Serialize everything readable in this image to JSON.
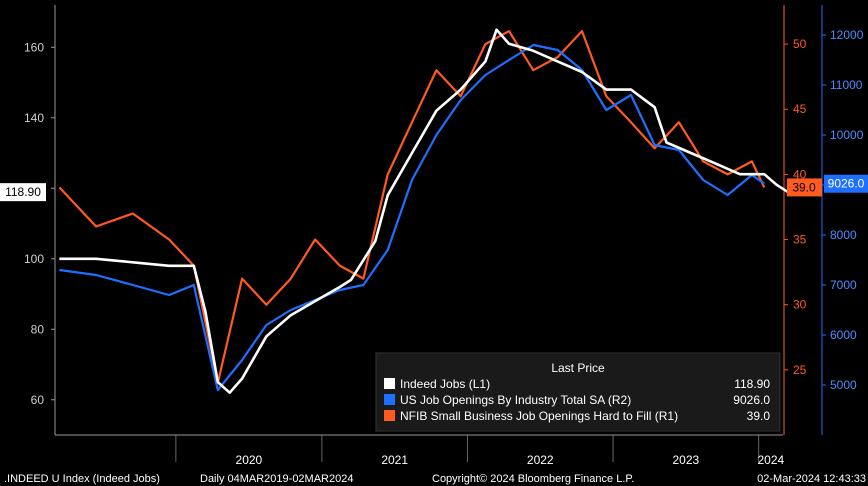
{
  "chart_data": {
    "type": "line",
    "footer": {
      "security": ".INDEED U Index (Indeed Jobs)",
      "period": "Daily 04MAR2019-02MAR2024",
      "copyright": "Copyright© 2024 Bloomberg Finance L.P.",
      "timestamp": "02-Mar-2024 12:43:33"
    },
    "legend": {
      "header": "Last Price",
      "placement": "bottom-right"
    },
    "x_ticks": [
      "2020",
      "2021",
      "2022",
      "2023",
      "2024"
    ],
    "axes": {
      "L1": {
        "ticks": [
          60,
          80,
          100,
          120,
          140,
          160
        ],
        "range": [
          50,
          172
        ]
      },
      "R1": {
        "ticks": [
          25,
          30,
          35,
          40,
          45,
          50
        ],
        "range": [
          20,
          53
        ]
      },
      "R2": {
        "ticks": [
          5000,
          6000,
          7000,
          8000,
          9000,
          10000,
          11000,
          12000
        ],
        "range": [
          4000,
          12600
        ]
      }
    },
    "series": [
      {
        "name": "Indeed Jobs (L1)",
        "axis": "L1",
        "color": "#ffffff",
        "last_label": "118.90",
        "last_value": 118.9,
        "points": [
          [
            "2019-03",
            100
          ],
          [
            "2019-06",
            100
          ],
          [
            "2019-09",
            99
          ],
          [
            "2019-12",
            98
          ],
          [
            "2020-02",
            98
          ],
          [
            "2020-03",
            85
          ],
          [
            "2020-04",
            65
          ],
          [
            "2020-05",
            62
          ],
          [
            "2020-06",
            66
          ],
          [
            "2020-08",
            78
          ],
          [
            "2020-10",
            84
          ],
          [
            "2020-12",
            88
          ],
          [
            "2021-02",
            92
          ],
          [
            "2021-03",
            94
          ],
          [
            "2021-05",
            105
          ],
          [
            "2021-06",
            118
          ],
          [
            "2021-08",
            130
          ],
          [
            "2021-10",
            142
          ],
          [
            "2021-12",
            148
          ],
          [
            "2022-02",
            156
          ],
          [
            "2022-03",
            165
          ],
          [
            "2022-04",
            161
          ],
          [
            "2022-06",
            159
          ],
          [
            "2022-08",
            156
          ],
          [
            "2022-10",
            153
          ],
          [
            "2022-12",
            148
          ],
          [
            "2023-02",
            148
          ],
          [
            "2023-04",
            143
          ],
          [
            "2023-05",
            133
          ],
          [
            "2023-07",
            130
          ],
          [
            "2023-09",
            127
          ],
          [
            "2023-11",
            124
          ],
          [
            "2024-01",
            124
          ],
          [
            "2024-02",
            121
          ],
          [
            "2024-03",
            118.9
          ]
        ]
      },
      {
        "name": "US Job Openings By Industry Total SA (R2)",
        "axis": "R2",
        "color": "#1f6fff",
        "last_label": "9026.0",
        "last_value": 9026,
        "points": [
          [
            "2019-03",
            7300
          ],
          [
            "2019-06",
            7200
          ],
          [
            "2019-09",
            7000
          ],
          [
            "2019-12",
            6800
          ],
          [
            "2020-02",
            7000
          ],
          [
            "2020-04",
            4900
          ],
          [
            "2020-06",
            5500
          ],
          [
            "2020-08",
            6200
          ],
          [
            "2020-10",
            6500
          ],
          [
            "2020-12",
            6700
          ],
          [
            "2021-02",
            6900
          ],
          [
            "2021-04",
            7000
          ],
          [
            "2021-06",
            7700
          ],
          [
            "2021-08",
            9100
          ],
          [
            "2021-10",
            10000
          ],
          [
            "2021-12",
            10700
          ],
          [
            "2022-02",
            11200
          ],
          [
            "2022-04",
            11500
          ],
          [
            "2022-06",
            11800
          ],
          [
            "2022-08",
            11700
          ],
          [
            "2022-10",
            11300
          ],
          [
            "2022-12",
            10500
          ],
          [
            "2023-02",
            10800
          ],
          [
            "2023-04",
            9800
          ],
          [
            "2023-06",
            9700
          ],
          [
            "2023-08",
            9100
          ],
          [
            "2023-10",
            8800
          ],
          [
            "2023-12",
            9200
          ],
          [
            "2024-01",
            9026
          ]
        ]
      },
      {
        "name": "NFIB Small Business Job Openings Hard to Fill (R1)",
        "axis": "R1",
        "color": "#ff5a1f",
        "last_label": "39.0",
        "last_value": 39,
        "points": [
          [
            "2019-03",
            39
          ],
          [
            "2019-06",
            36
          ],
          [
            "2019-09",
            37
          ],
          [
            "2019-12",
            35
          ],
          [
            "2020-02",
            33
          ],
          [
            "2020-04",
            24
          ],
          [
            "2020-06",
            32
          ],
          [
            "2020-08",
            30
          ],
          [
            "2020-10",
            32
          ],
          [
            "2020-12",
            35
          ],
          [
            "2021-02",
            33
          ],
          [
            "2021-04",
            32
          ],
          [
            "2021-06",
            40
          ],
          [
            "2021-08",
            44
          ],
          [
            "2021-10",
            48
          ],
          [
            "2021-12",
            46
          ],
          [
            "2022-02",
            50
          ],
          [
            "2022-04",
            51
          ],
          [
            "2022-06",
            48
          ],
          [
            "2022-08",
            49
          ],
          [
            "2022-10",
            51
          ],
          [
            "2022-12",
            46
          ],
          [
            "2023-02",
            44
          ],
          [
            "2023-04",
            42
          ],
          [
            "2023-06",
            44
          ],
          [
            "2023-08",
            41
          ],
          [
            "2023-10",
            40
          ],
          [
            "2023-12",
            41
          ],
          [
            "2024-01",
            39
          ]
        ]
      }
    ]
  }
}
